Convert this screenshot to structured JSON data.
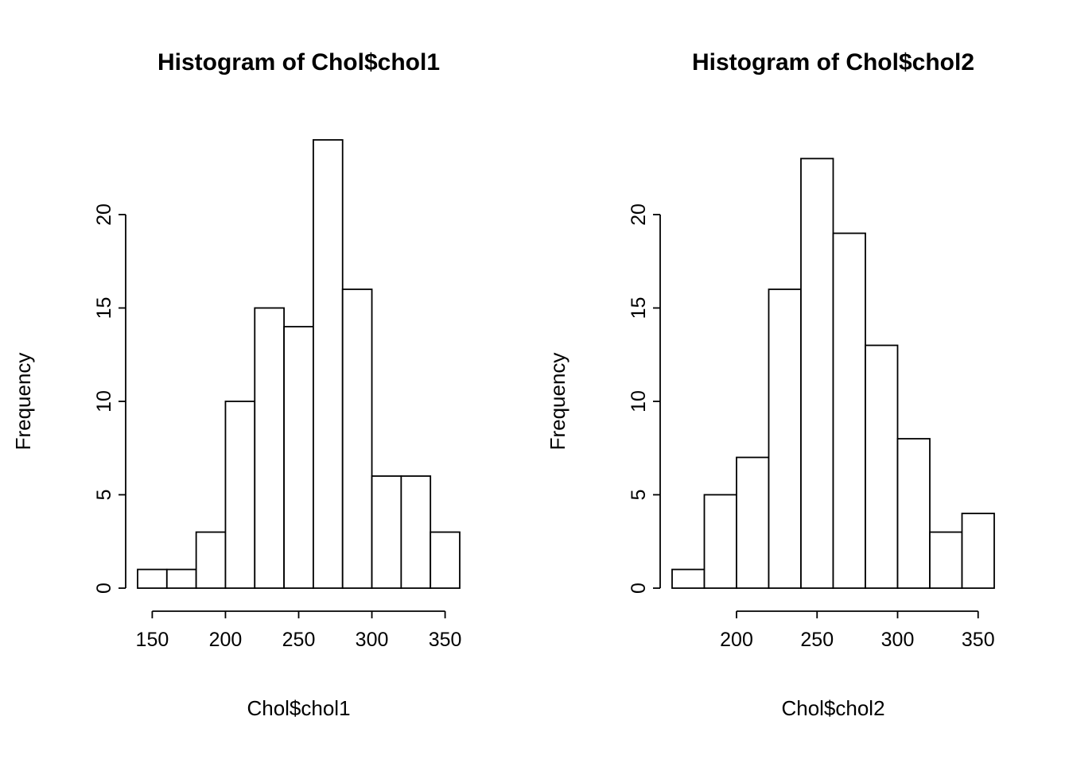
{
  "chart_data": [
    {
      "type": "bar",
      "title": "Histogram of Chol$chol1",
      "xlabel": "Chol$chol1",
      "ylabel": "Frequency",
      "bin_start": 140,
      "bin_width": 20,
      "values": [
        1,
        1,
        3,
        10,
        15,
        14,
        24,
        16,
        6,
        6,
        3
      ],
      "x_ticks": [
        150,
        200,
        250,
        300,
        350
      ],
      "y_ticks": [
        0,
        5,
        10,
        15,
        20
      ],
      "xlim": [
        140,
        360
      ],
      "ylim": [
        0,
        24
      ],
      "grid": false,
      "legend": "none",
      "bar_fill": "#ffffff",
      "line_color": "#000000"
    },
    {
      "type": "bar",
      "title": "Histogram of Chol$chol2",
      "xlabel": "Chol$chol2",
      "ylabel": "Frequency",
      "bin_start": 160,
      "bin_width": 20,
      "values": [
        1,
        5,
        7,
        16,
        23,
        19,
        13,
        8,
        3,
        4
      ],
      "x_ticks": [
        200,
        250,
        300,
        350
      ],
      "y_ticks": [
        0,
        5,
        10,
        15,
        20
      ],
      "xlim": [
        160,
        360
      ],
      "ylim": [
        0,
        23
      ],
      "grid": false,
      "legend": "none",
      "bar_fill": "#ffffff",
      "line_color": "#000000"
    }
  ]
}
